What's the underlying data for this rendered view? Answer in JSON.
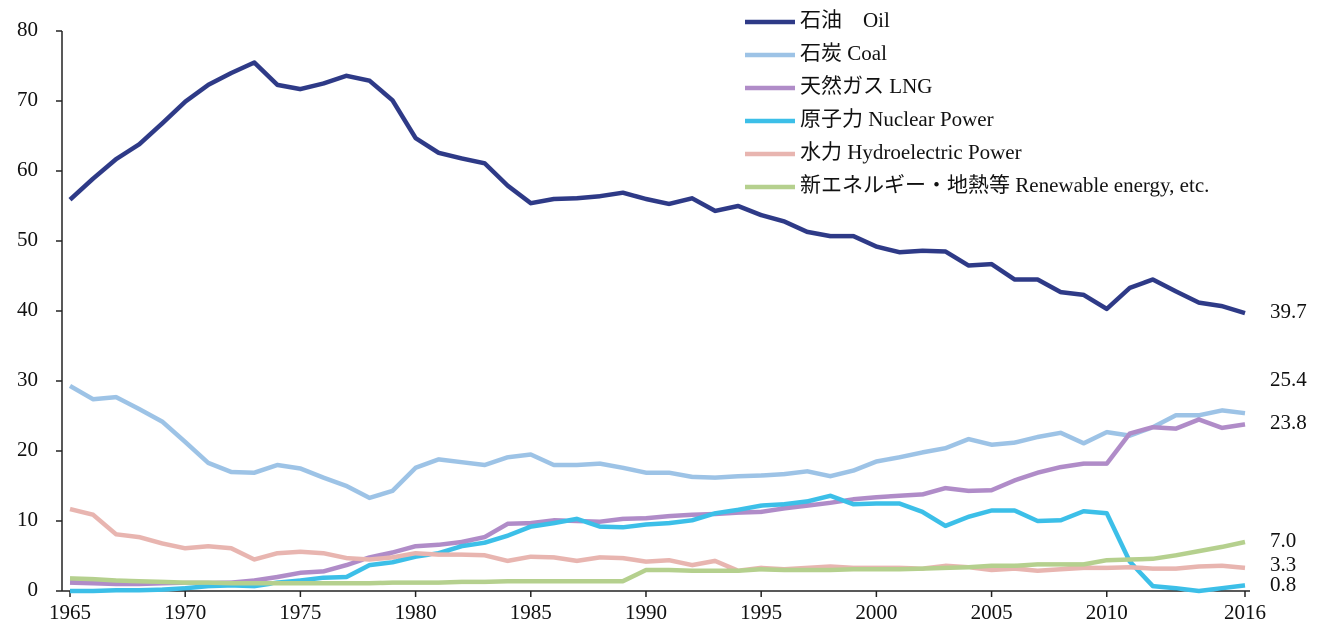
{
  "chart_data": {
    "type": "line",
    "x": [
      1965,
      1966,
      1967,
      1968,
      1969,
      1970,
      1971,
      1972,
      1973,
      1974,
      1975,
      1976,
      1977,
      1978,
      1979,
      1980,
      1981,
      1982,
      1983,
      1984,
      1985,
      1986,
      1987,
      1988,
      1989,
      1990,
      1991,
      1992,
      1993,
      1994,
      1995,
      1996,
      1997,
      1998,
      1999,
      2000,
      2001,
      2002,
      2003,
      2004,
      2005,
      2006,
      2007,
      2008,
      2009,
      2010,
      2011,
      2012,
      2013,
      2014,
      2015,
      2016
    ],
    "xlim": [
      1965,
      2016
    ],
    "xticks": [
      1965,
      1970,
      1975,
      1980,
      1985,
      1990,
      1995,
      2000,
      2005,
      2010,
      2016
    ],
    "ylim": [
      0,
      80
    ],
    "yticks": [
      0,
      10,
      20,
      30,
      40,
      50,
      60,
      70,
      80
    ],
    "grid": false,
    "legend": "top-right",
    "series": [
      {
        "name": "石油　Oil",
        "color": "#2e3a87",
        "values": [
          55.9,
          58.9,
          61.7,
          63.8,
          66.8,
          69.9,
          72.3,
          74.0,
          75.5,
          72.3,
          71.7,
          72.5,
          73.6,
          72.9,
          70.1,
          64.7,
          62.6,
          61.8,
          61.1,
          57.9,
          55.4,
          56.0,
          56.1,
          56.4,
          56.9,
          56.0,
          55.3,
          56.1,
          54.3,
          55.0,
          53.7,
          52.8,
          51.3,
          50.7,
          50.7,
          49.2,
          48.4,
          48.6,
          48.5,
          46.5,
          46.7,
          44.5,
          44.5,
          42.7,
          42.3,
          40.3,
          43.3,
          44.5,
          42.8,
          41.2,
          40.7,
          39.7
        ],
        "value_labels": [
          null,
          null,
          null,
          null,
          null,
          null,
          null,
          null,
          null,
          null,
          null,
          null,
          null,
          null,
          null,
          null,
          null,
          null,
          null,
          null,
          null,
          null,
          null,
          null,
          null,
          null,
          null,
          null,
          null,
          null,
          null,
          null,
          null,
          null,
          null,
          null,
          null,
          null,
          null,
          null,
          null,
          null,
          null,
          null,
          null,
          null,
          null,
          null,
          null,
          null,
          null,
          "39.7"
        ]
      },
      {
        "name": "石炭 Coal",
        "color": "#9dc3e6",
        "values": [
          29.3,
          27.4,
          27.7,
          26.0,
          24.2,
          21.3,
          18.3,
          17.0,
          16.9,
          18.0,
          17.5,
          16.2,
          15.0,
          13.3,
          14.3,
          17.6,
          18.8,
          18.4,
          18.0,
          19.1,
          19.5,
          18.0,
          18.0,
          18.2,
          17.6,
          16.9,
          16.9,
          16.3,
          16.2,
          16.4,
          16.5,
          16.7,
          17.1,
          16.4,
          17.2,
          18.5,
          19.1,
          19.8,
          20.4,
          21.7,
          20.9,
          21.2,
          22.0,
          22.6,
          21.1,
          22.7,
          22.2,
          23.4,
          25.1,
          25.1,
          25.8,
          25.4
        ],
        "value_labels": [
          null,
          null,
          null,
          null,
          null,
          null,
          null,
          null,
          null,
          null,
          null,
          null,
          null,
          null,
          null,
          null,
          null,
          null,
          null,
          null,
          null,
          null,
          null,
          null,
          null,
          null,
          null,
          null,
          null,
          null,
          null,
          null,
          null,
          null,
          null,
          null,
          null,
          null,
          null,
          null,
          null,
          null,
          null,
          null,
          null,
          null,
          null,
          null,
          null,
          null,
          null,
          "25.4"
        ]
      },
      {
        "name": "天然ガス LNG",
        "color": "#b08cc8",
        "values": [
          1.2,
          1.1,
          1.0,
          1.0,
          1.1,
          1.2,
          1.2,
          1.2,
          1.5,
          2.0,
          2.6,
          2.8,
          3.7,
          4.8,
          5.5,
          6.4,
          6.6,
          7.0,
          7.7,
          9.6,
          9.7,
          10.1,
          10.0,
          9.9,
          10.3,
          10.4,
          10.7,
          10.9,
          11.0,
          11.2,
          11.3,
          11.8,
          12.2,
          12.6,
          13.1,
          13.4,
          13.6,
          13.8,
          14.7,
          14.3,
          14.4,
          15.8,
          16.9,
          17.7,
          18.2,
          18.2,
          22.5,
          23.4,
          23.2,
          24.5,
          23.3,
          23.8
        ],
        "value_labels": [
          null,
          null,
          null,
          null,
          null,
          null,
          null,
          null,
          null,
          null,
          null,
          null,
          null,
          null,
          null,
          null,
          null,
          null,
          null,
          null,
          null,
          null,
          null,
          null,
          null,
          null,
          null,
          null,
          null,
          null,
          null,
          null,
          null,
          null,
          null,
          null,
          null,
          null,
          null,
          null,
          null,
          null,
          null,
          null,
          null,
          null,
          null,
          null,
          null,
          null,
          null,
          "23.8"
        ]
      },
      {
        "name": "原子力 Nuclear Power",
        "color": "#3cbfe8",
        "values": [
          0.0,
          0.0,
          0.1,
          0.1,
          0.2,
          0.4,
          0.7,
          0.8,
          0.7,
          1.2,
          1.5,
          1.9,
          2.0,
          3.7,
          4.1,
          4.9,
          5.4,
          6.4,
          6.9,
          7.9,
          9.2,
          9.7,
          10.3,
          9.2,
          9.1,
          9.5,
          9.7,
          10.1,
          11.1,
          11.6,
          12.2,
          12.4,
          12.8,
          13.6,
          12.4,
          12.5,
          12.5,
          11.3,
          9.3,
          10.6,
          11.5,
          11.5,
          10.0,
          10.1,
          11.4,
          11.1,
          4.2,
          0.7,
          0.4,
          0.0,
          0.4,
          0.8
        ],
        "value_labels": [
          null,
          null,
          null,
          null,
          null,
          null,
          null,
          null,
          null,
          null,
          null,
          null,
          null,
          null,
          null,
          null,
          null,
          null,
          null,
          null,
          null,
          null,
          null,
          null,
          null,
          null,
          null,
          null,
          null,
          null,
          null,
          null,
          null,
          null,
          null,
          null,
          null,
          null,
          null,
          null,
          null,
          null,
          null,
          null,
          null,
          null,
          null,
          null,
          null,
          null,
          null,
          "0.8"
        ]
      },
      {
        "name": "水力 Hydroelectric Power",
        "color": "#e8b5b0",
        "values": [
          11.7,
          10.9,
          8.1,
          7.7,
          6.8,
          6.1,
          6.4,
          6.1,
          4.5,
          5.4,
          5.6,
          5.4,
          4.7,
          4.5,
          4.8,
          5.4,
          5.2,
          5.2,
          5.1,
          4.3,
          4.9,
          4.8,
          4.3,
          4.8,
          4.7,
          4.2,
          4.4,
          3.7,
          4.3,
          2.9,
          3.3,
          3.1,
          3.3,
          3.5,
          3.3,
          3.3,
          3.3,
          3.2,
          3.6,
          3.4,
          3.0,
          3.2,
          2.9,
          3.1,
          3.3,
          3.3,
          3.4,
          3.2,
          3.2,
          3.5,
          3.6,
          3.3
        ],
        "value_labels": [
          null,
          null,
          null,
          null,
          null,
          null,
          null,
          null,
          null,
          null,
          null,
          null,
          null,
          null,
          null,
          null,
          null,
          null,
          null,
          null,
          null,
          null,
          null,
          null,
          null,
          null,
          null,
          null,
          null,
          null,
          null,
          null,
          null,
          null,
          null,
          null,
          null,
          null,
          null,
          null,
          null,
          null,
          null,
          null,
          null,
          null,
          null,
          null,
          null,
          null,
          null,
          "3.3"
        ]
      },
      {
        "name": "新エネルギー・地熱等 Renewable energy, etc.",
        "color": "#b5d08e",
        "values": [
          1.8,
          1.7,
          1.5,
          1.4,
          1.3,
          1.2,
          1.2,
          1.1,
          1.1,
          1.1,
          1.1,
          1.1,
          1.1,
          1.1,
          1.2,
          1.2,
          1.2,
          1.3,
          1.3,
          1.4,
          1.4,
          1.4,
          1.4,
          1.4,
          1.4,
          3.0,
          3.0,
          2.9,
          2.9,
          2.9,
          3.1,
          3.0,
          3.0,
          3.0,
          3.1,
          3.1,
          3.1,
          3.2,
          3.3,
          3.4,
          3.6,
          3.6,
          3.8,
          3.8,
          3.8,
          4.4,
          4.5,
          4.6,
          5.1,
          5.7,
          6.3,
          7.0
        ],
        "value_labels": [
          null,
          null,
          null,
          null,
          null,
          null,
          null,
          null,
          null,
          null,
          null,
          null,
          null,
          null,
          null,
          null,
          null,
          null,
          null,
          null,
          null,
          null,
          null,
          null,
          null,
          null,
          null,
          null,
          null,
          null,
          null,
          null,
          null,
          null,
          null,
          null,
          null,
          null,
          null,
          null,
          null,
          null,
          null,
          null,
          null,
          null,
          null,
          null,
          null,
          null,
          null,
          "7.0"
        ]
      }
    ]
  }
}
